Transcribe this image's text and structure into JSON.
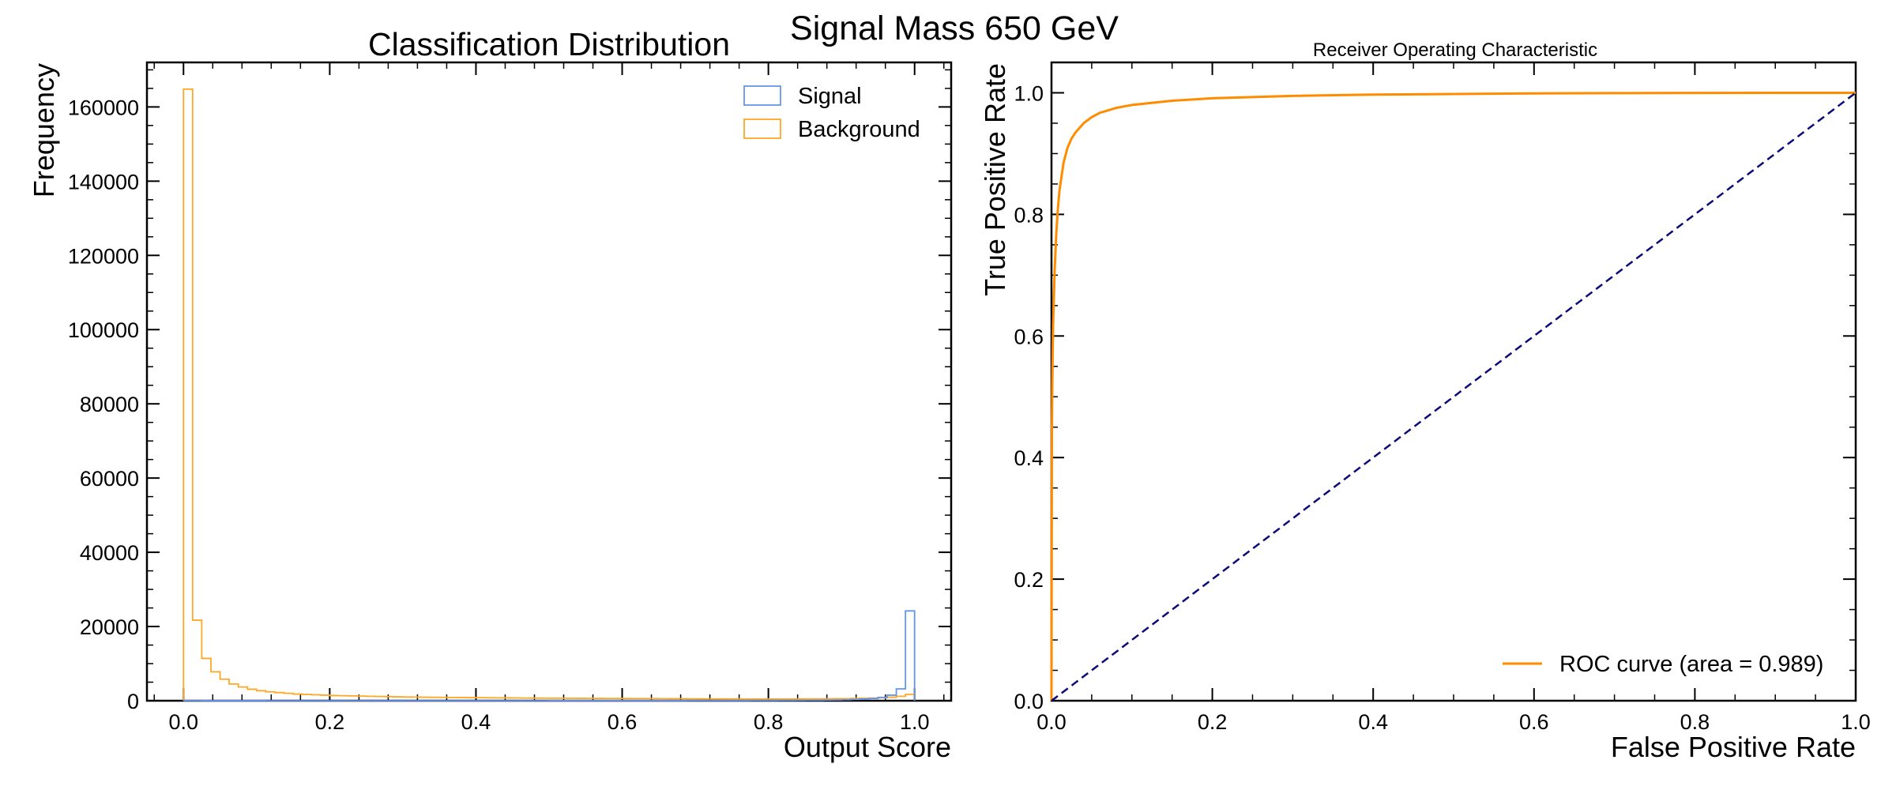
{
  "figure": {
    "suptitle": "Signal Mass 650 GeV"
  },
  "chart_data": [
    {
      "type": "histogram",
      "title": "Classification Distribution",
      "xlabel": "Output Score",
      "ylabel": "Frequency",
      "xlim": [
        -0.05,
        1.05
      ],
      "ylim": [
        0,
        172000
      ],
      "xticks": [
        0.0,
        0.2,
        0.4,
        0.6,
        0.8,
        1.0
      ],
      "xtick_labels": [
        "0.0",
        "0.2",
        "0.4",
        "0.6",
        "0.8",
        "1.0"
      ],
      "yticks": [
        0,
        20000,
        40000,
        60000,
        80000,
        100000,
        120000,
        140000,
        160000
      ],
      "ytick_labels": [
        "0",
        "20000",
        "40000",
        "60000",
        "80000",
        "100000",
        "120000",
        "140000",
        "160000"
      ],
      "legend_position": "top-right",
      "bin_edges_range": [
        0.0,
        1.0
      ],
      "n_bins": 80,
      "series": [
        {
          "name": "Signal",
          "color": "#6495ED",
          "histtype": "step",
          "values": [
            30,
            20,
            15,
            12,
            10,
            10,
            9,
            8,
            8,
            7,
            7,
            7,
            6,
            6,
            6,
            6,
            6,
            6,
            6,
            6,
            6,
            6,
            6,
            6,
            6,
            6,
            6,
            6,
            6,
            6,
            6,
            6,
            6,
            6,
            6,
            7,
            7,
            7,
            7,
            7,
            8,
            8,
            8,
            8,
            9,
            9,
            10,
            10,
            11,
            12,
            13,
            14,
            15,
            16,
            18,
            20,
            22,
            25,
            28,
            32,
            36,
            42,
            48,
            55,
            65,
            75,
            90,
            105,
            125,
            150,
            180,
            220,
            270,
            340,
            440,
            600,
            900,
            1500,
            3200,
            24200
          ]
        },
        {
          "name": "Background",
          "color": "#FFA726",
          "histtype": "step",
          "values": [
            164800,
            21700,
            11400,
            7800,
            5800,
            4500,
            3700,
            3100,
            2700,
            2400,
            2200,
            2000,
            1800,
            1700,
            1600,
            1500,
            1400,
            1350,
            1300,
            1250,
            1200,
            1150,
            1100,
            1050,
            1000,
            980,
            950,
            920,
            900,
            880,
            860,
            840,
            820,
            800,
            780,
            760,
            740,
            720,
            700,
            690,
            680,
            670,
            660,
            650,
            640,
            630,
            620,
            610,
            600,
            590,
            580,
            570,
            560,
            550,
            540,
            530,
            520,
            510,
            500,
            495,
            490,
            485,
            480,
            480,
            480,
            480,
            485,
            490,
            500,
            510,
            520,
            540,
            560,
            600,
            650,
            700,
            800,
            950,
            1200,
            1700
          ]
        }
      ]
    },
    {
      "type": "line",
      "title": "Receiver Operating Characteristic",
      "xlabel": "False Positive Rate",
      "ylabel": "True Positive Rate",
      "xlim": [
        0.0,
        1.0
      ],
      "ylim": [
        0.0,
        1.05
      ],
      "xticks": [
        0.0,
        0.2,
        0.4,
        0.6,
        0.8,
        1.0
      ],
      "xtick_labels": [
        "0.0",
        "0.2",
        "0.4",
        "0.6",
        "0.8",
        "1.0"
      ],
      "yticks": [
        0.0,
        0.2,
        0.4,
        0.6,
        0.8,
        1.0
      ],
      "ytick_labels": [
        "0.0",
        "0.2",
        "0.4",
        "0.6",
        "0.8",
        "1.0"
      ],
      "legend_position": "lower-right",
      "series": [
        {
          "name": "ROC curve (area = 0.989)",
          "color": "#FF8C00",
          "style": "solid",
          "x": [
            0.0,
            0.0005,
            0.001,
            0.002,
            0.004,
            0.006,
            0.008,
            0.01,
            0.015,
            0.02,
            0.025,
            0.03,
            0.04,
            0.05,
            0.06,
            0.08,
            0.1,
            0.15,
            0.2,
            0.3,
            0.4,
            0.5,
            0.6,
            0.7,
            0.8,
            0.9,
            1.0
          ],
          "y": [
            0.0,
            0.45,
            0.52,
            0.62,
            0.71,
            0.77,
            0.81,
            0.84,
            0.885,
            0.91,
            0.925,
            0.935,
            0.95,
            0.96,
            0.967,
            0.975,
            0.98,
            0.987,
            0.991,
            0.995,
            0.997,
            0.998,
            0.999,
            0.9995,
            0.9998,
            0.9999,
            1.0
          ]
        },
        {
          "name": "",
          "color": "#0B0B7A",
          "style": "dashed",
          "x": [
            0.0,
            1.0
          ],
          "y": [
            0.0,
            1.0
          ]
        }
      ]
    }
  ]
}
